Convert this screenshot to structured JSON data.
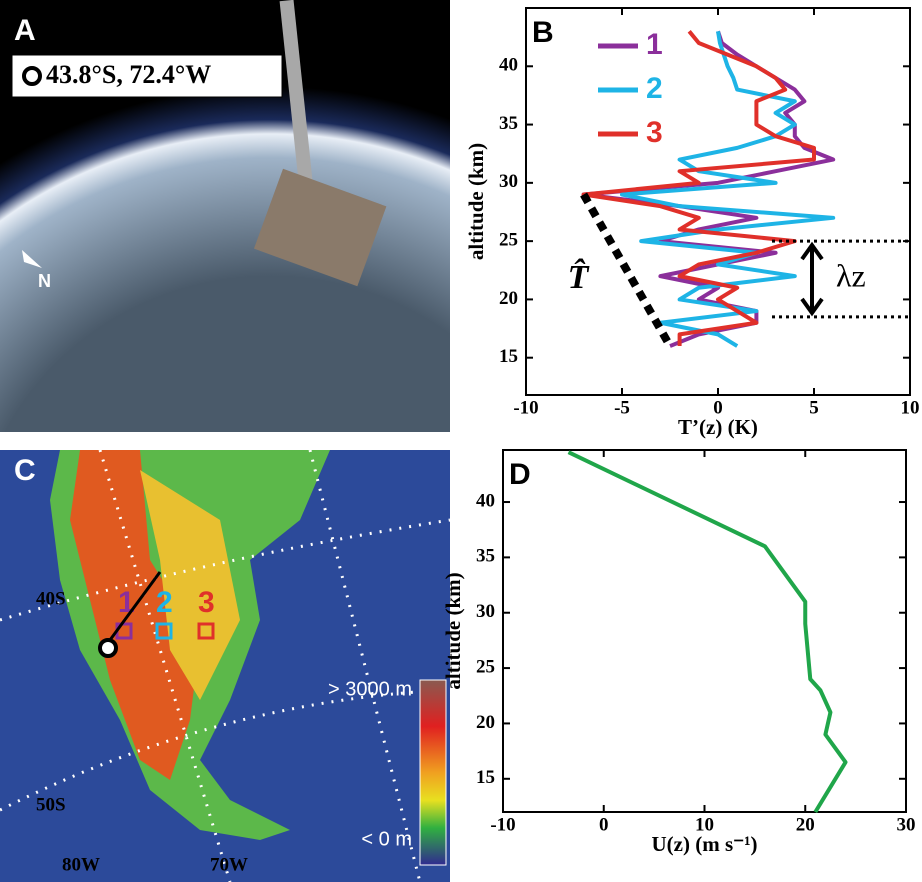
{
  "photo_panel": {
    "panel_label": "A",
    "location": "43.8°S, 72.4°W",
    "north": "N"
  },
  "map_panel": {
    "panel_label": "C",
    "lat_labels": [
      "40S",
      "50S"
    ],
    "lon_labels": [
      "80W",
      "70W"
    ],
    "colorbar_top": "> 3000 m",
    "colorbar_bottom": "< 0 m",
    "sites": [
      "1",
      "2",
      "3"
    ]
  },
  "chart_data": [
    {
      "type": "line",
      "panel_label": "B",
      "xlabel": "T’(z) (K)",
      "ylabel": "altitude (km)",
      "y": [
        16,
        17,
        18,
        19,
        20,
        21,
        22,
        23,
        24,
        25,
        26,
        27,
        28,
        29,
        30,
        31,
        32,
        33,
        34,
        35,
        36,
        37,
        38,
        39,
        40,
        41,
        42,
        43
      ],
      "series": [
        {
          "name": "1",
          "color": "#8b2f9b",
          "values": [
            -2.5,
            -1,
            2,
            2,
            -1,
            0,
            -3,
            0,
            3,
            -3,
            -1,
            2,
            -2,
            -7,
            0,
            3,
            6,
            4.5,
            4,
            4,
            3.5,
            4.5,
            4,
            3,
            2,
            1,
            0.2,
            0
          ]
        },
        {
          "name": "2",
          "color": "#1eb4e6",
          "values": [
            1,
            0,
            -3,
            2,
            -2,
            -1,
            4,
            0,
            2,
            -4,
            0,
            6,
            -2,
            -5,
            3,
            -1,
            -2,
            1,
            3,
            4,
            3,
            4,
            1,
            0.8,
            0.5,
            0.3,
            0.1,
            0
          ]
        },
        {
          "name": "3",
          "color": "#e0302a",
          "values": [
            -2,
            -2,
            2,
            1,
            0,
            1,
            -2,
            -1,
            2,
            4,
            -2,
            -1,
            -3,
            -7,
            -1,
            -2,
            5,
            5,
            3,
            2,
            2,
            2,
            3.5,
            3,
            2,
            0.5,
            -1,
            -1.5
          ]
        }
      ],
      "envelope": {
        "label": "T̂",
        "x": [
          -7,
          -2.5
        ],
        "y": [
          29,
          16
        ]
      },
      "wavelength": {
        "label": "λz",
        "y": [
          25,
          18.5
        ]
      },
      "xlim": [
        -10,
        10
      ],
      "ylim": [
        11.8,
        45
      ],
      "xticks": [
        -10,
        -5,
        0,
        5,
        10
      ],
      "yticks": [
        15,
        20,
        25,
        30,
        35,
        40
      ]
    },
    {
      "type": "line",
      "panel_label": "D",
      "xlabel": "U(z) (m s⁻¹)",
      "ylabel": "altitude (km)",
      "y": [
        44.5,
        36,
        31,
        29,
        24,
        23,
        21,
        19,
        16.5,
        12
      ],
      "series": [
        {
          "color": "#20a64a",
          "values": [
            -3.5,
            16,
            20,
            20,
            20.5,
            21.5,
            22.5,
            22,
            24,
            21
          ]
        }
      ],
      "xlim": [
        -10,
        30
      ],
      "ylim": [
        12,
        44.7
      ],
      "xticks": [
        -10,
        0,
        10,
        20,
        30
      ],
      "yticks": [
        15,
        20,
        25,
        30,
        35,
        40
      ]
    }
  ]
}
